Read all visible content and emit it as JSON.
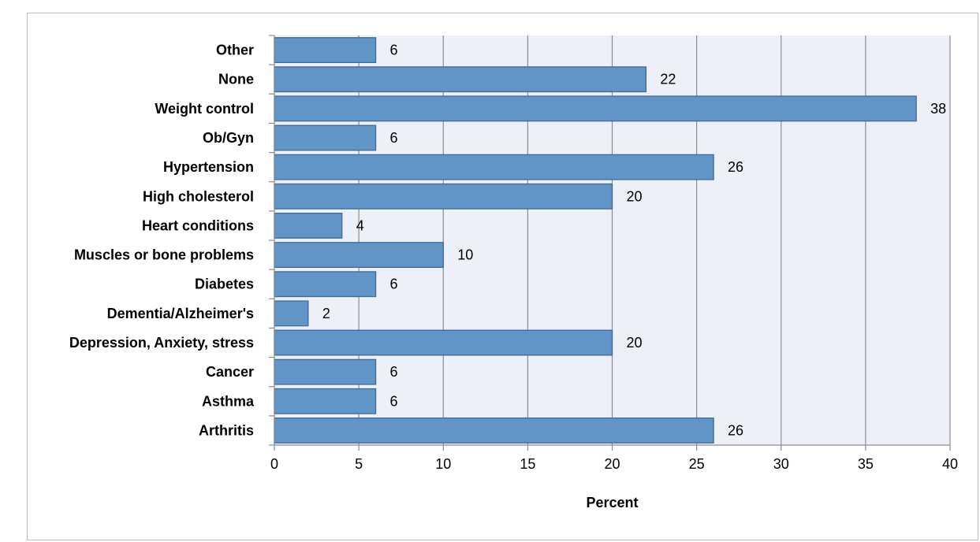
{
  "chart_data": {
    "type": "bar",
    "orientation": "horizontal",
    "categories": [
      "Other",
      "None",
      "Weight control",
      "Ob/Gyn",
      "Hypertension",
      "High cholesterol",
      "Heart conditions",
      "Muscles or bone problems",
      "Diabetes",
      "Dementia/Alzheimer's",
      "Depression, Anxiety, stress",
      "Cancer",
      "Asthma",
      "Arthritis"
    ],
    "values": [
      6,
      22,
      38,
      6,
      26,
      20,
      4,
      10,
      6,
      2,
      20,
      6,
      6,
      26
    ],
    "xlabel": "Percent",
    "ylabel": "",
    "xlim": [
      0,
      40
    ],
    "xticks": [
      "0",
      "5",
      "10",
      "15",
      "20",
      "25",
      "30",
      "35",
      "40"
    ],
    "grid": "vertical",
    "legend": "none",
    "colors": {
      "bar_fill": "#6195C8",
      "bar_stroke": "#3E6A98",
      "plot_background": "#EDF0F8",
      "gridline": "#8C8C8C"
    }
  }
}
